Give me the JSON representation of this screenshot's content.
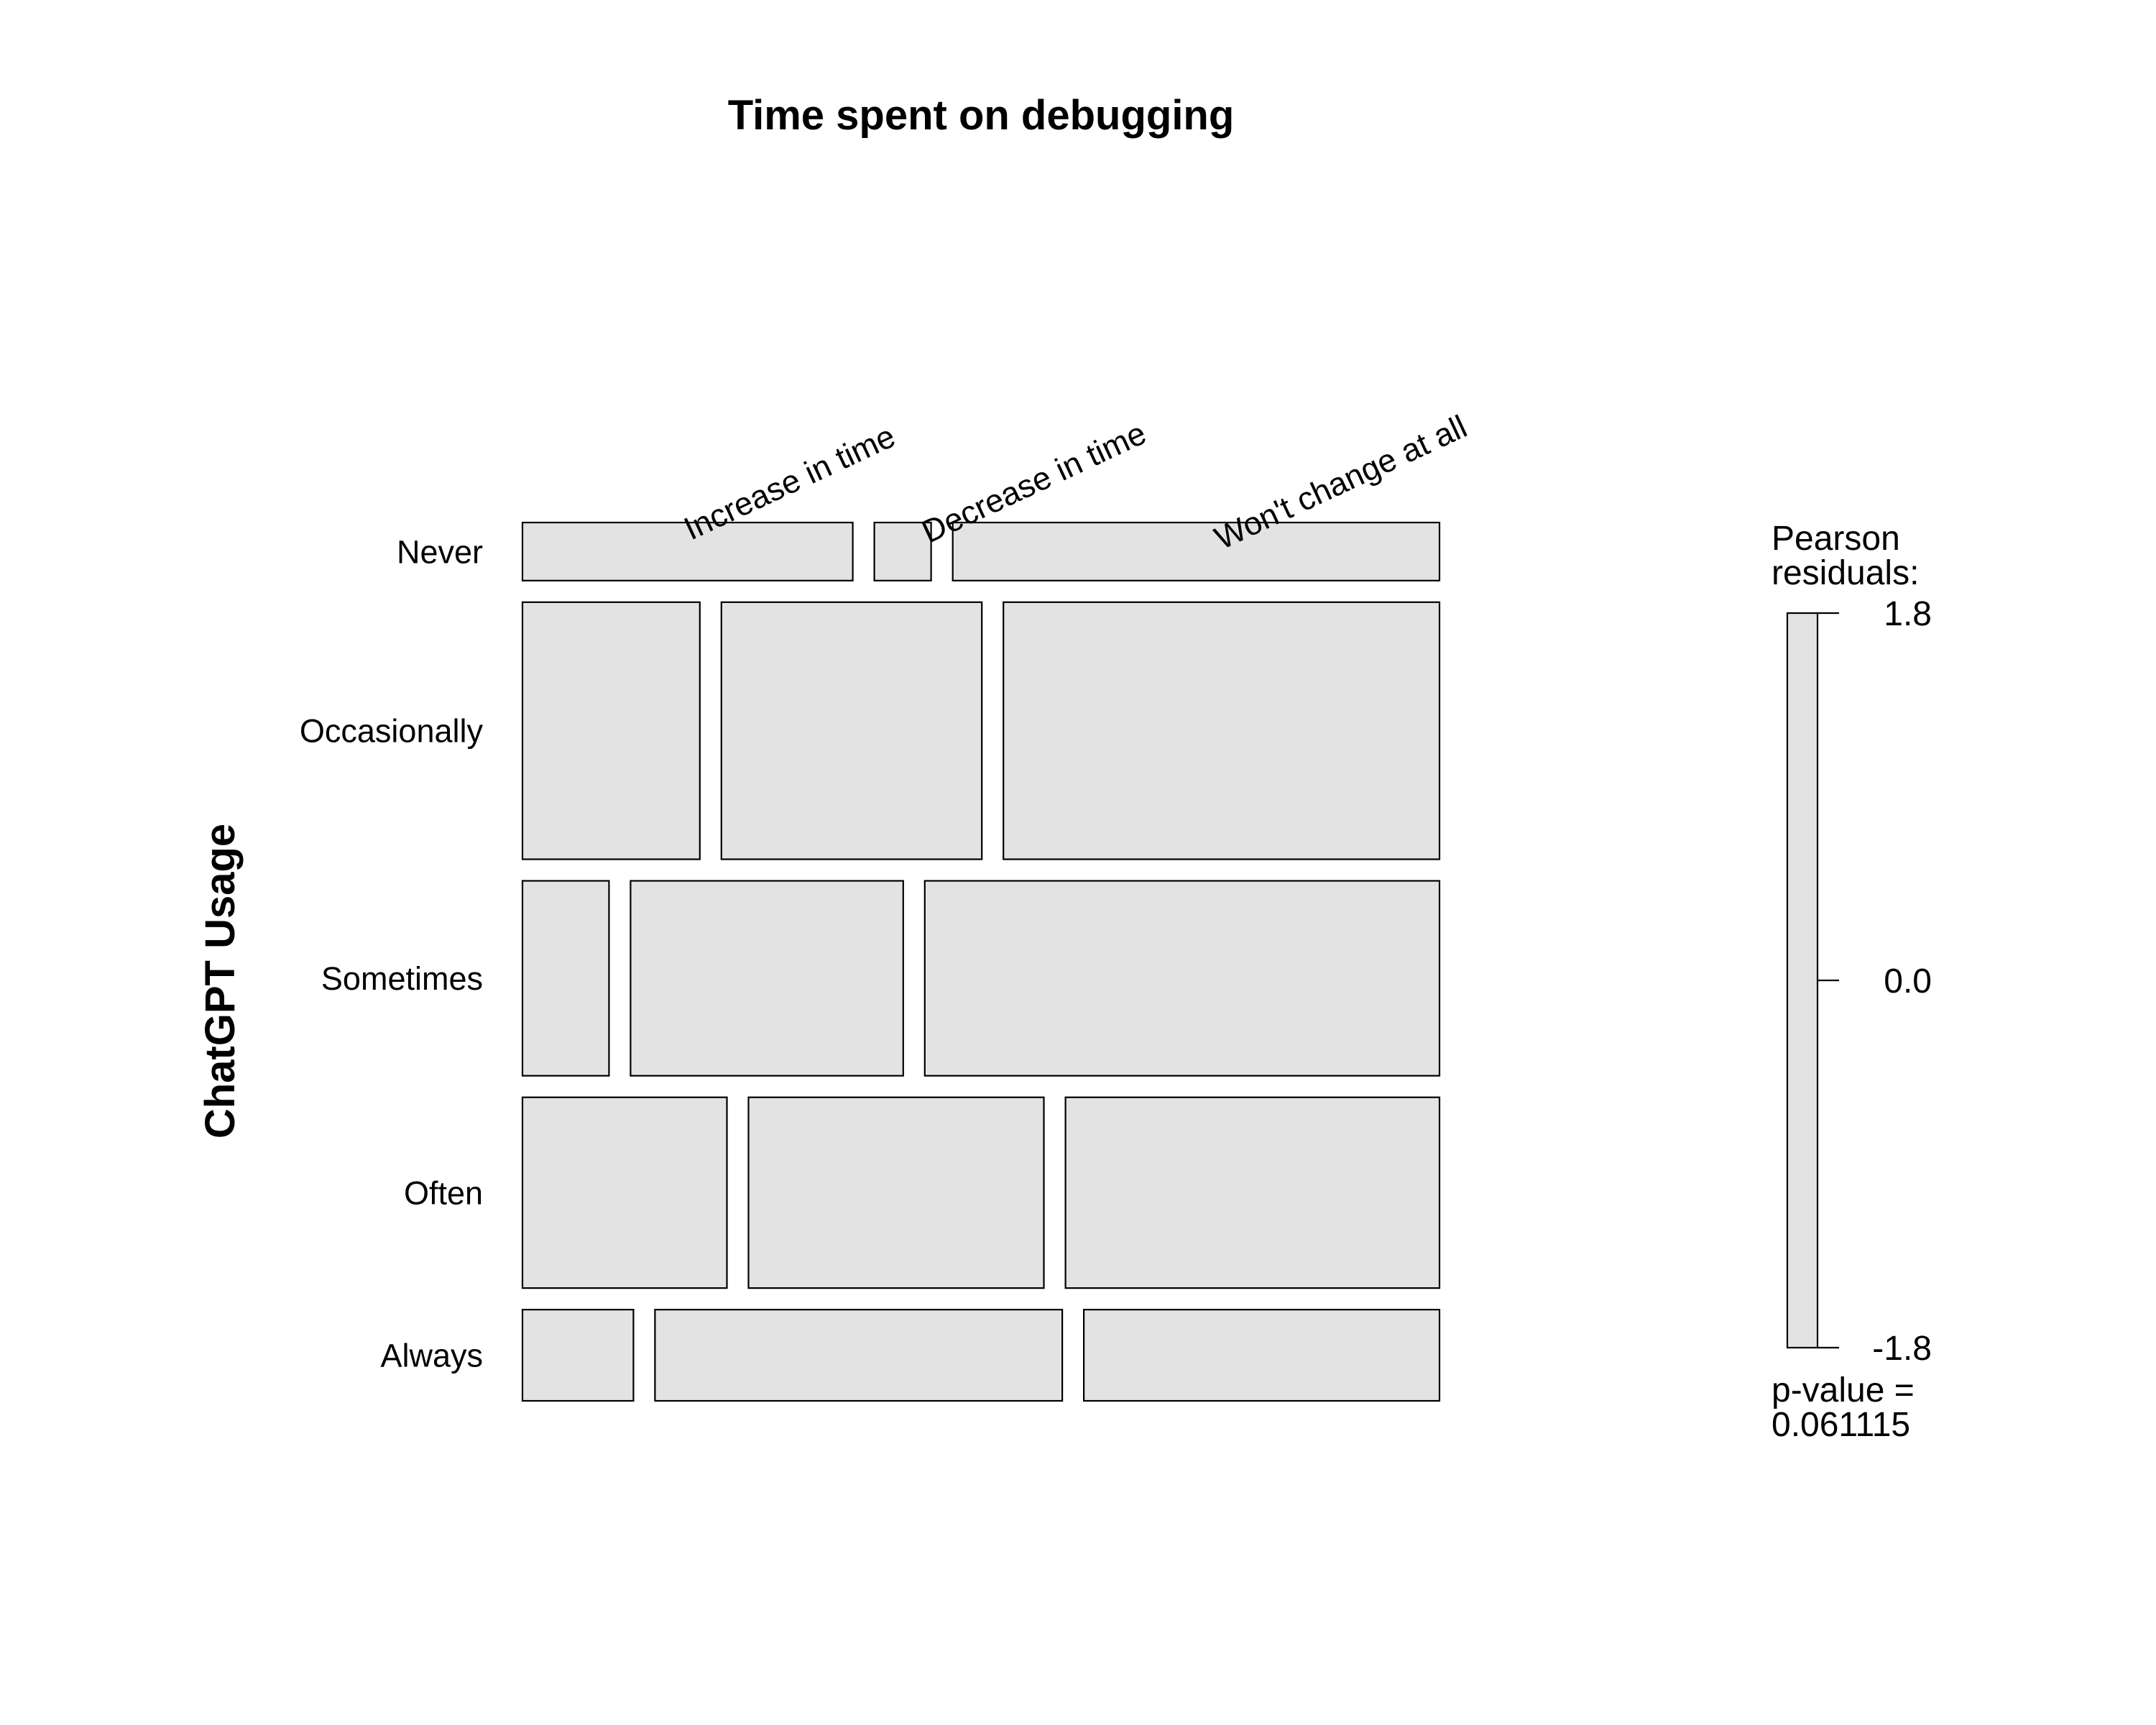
{
  "chart_data": {
    "type": "mosaic",
    "title": "Time spent on debugging",
    "ylabel": "ChatGPT Usage",
    "columns": [
      "Increase in time",
      "Decrease in time",
      "Won't change at all"
    ],
    "rows": [
      "Never",
      "Occasionally",
      "Sometimes",
      "Often",
      "Always"
    ],
    "row_proportions": [
      0.07,
      0.31,
      0.235,
      0.23,
      0.11
    ],
    "cell_proportions": [
      [
        0.378,
        0.065,
        0.557
      ],
      [
        0.203,
        0.298,
        0.499
      ],
      [
        0.099,
        0.312,
        0.589
      ],
      [
        0.234,
        0.338,
        0.428
      ],
      [
        0.127,
        0.466,
        0.407
      ]
    ],
    "legend": {
      "title_lines": [
        "Pearson",
        "residuals:"
      ],
      "ticks": [
        "1.8",
        "0.0",
        "-1.8"
      ],
      "range": [
        -1.8,
        1.8
      ],
      "fill": "#e3e3e3",
      "pvalue_lines": [
        "p-value =",
        "0.061115"
      ]
    }
  }
}
